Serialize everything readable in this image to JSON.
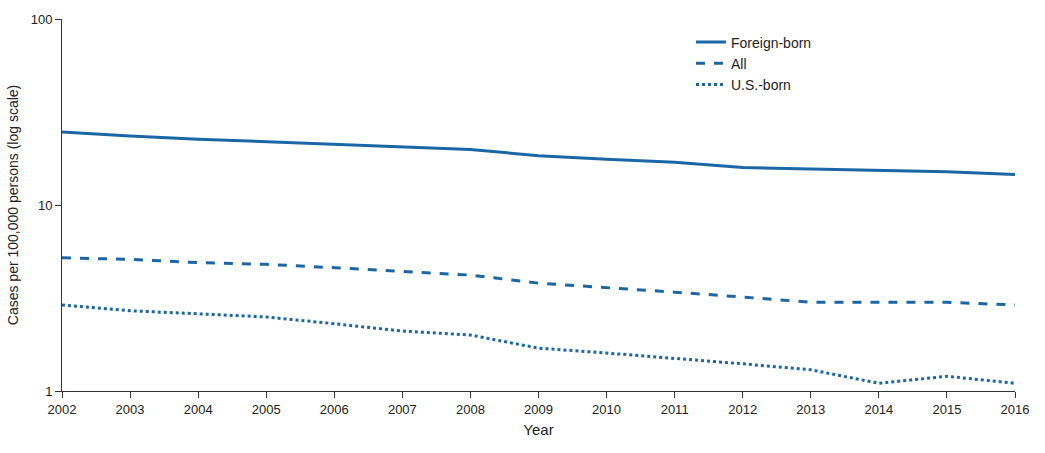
{
  "chart_data": {
    "type": "line",
    "x_label": "Year",
    "y_label": "Cases per 100,000 persons (log scale)",
    "x": [
      2002,
      2003,
      2004,
      2005,
      2006,
      2007,
      2008,
      2009,
      2010,
      2011,
      2012,
      2013,
      2014,
      2015,
      2016
    ],
    "series": [
      {
        "name": "Foreign-born",
        "color": "#1b67a5",
        "line_style": "solid",
        "values": [
          24.7,
          23.5,
          22.6,
          21.9,
          21.3,
          20.6,
          19.9,
          18.4,
          17.6,
          17.0,
          15.9,
          15.6,
          15.3,
          15.1,
          14.6
        ]
      },
      {
        "name": "All",
        "color": "#1b67a5",
        "line_style": "dash",
        "values": [
          5.2,
          5.1,
          4.9,
          4.8,
          4.6,
          4.4,
          4.2,
          3.8,
          3.6,
          3.4,
          3.2,
          3.0,
          3.0,
          3.0,
          2.9
        ]
      },
      {
        "name": "U.S.-born",
        "color": "#1b67a5",
        "line_style": "dot",
        "values": [
          2.9,
          2.7,
          2.6,
          2.5,
          2.3,
          2.1,
          2.0,
          1.7,
          1.6,
          1.5,
          1.4,
          1.3,
          1.1,
          1.2,
          1.1
        ]
      }
    ],
    "xlim": [
      2002,
      2016
    ],
    "xticks": [
      2002,
      2003,
      2004,
      2005,
      2006,
      2007,
      2008,
      2009,
      2010,
      2011,
      2012,
      2013,
      2014,
      2015,
      2016
    ],
    "ylim": [
      1,
      100
    ],
    "yticks": [
      1,
      10,
      100
    ],
    "log": "y",
    "grid": false,
    "legend": "top-right"
  }
}
